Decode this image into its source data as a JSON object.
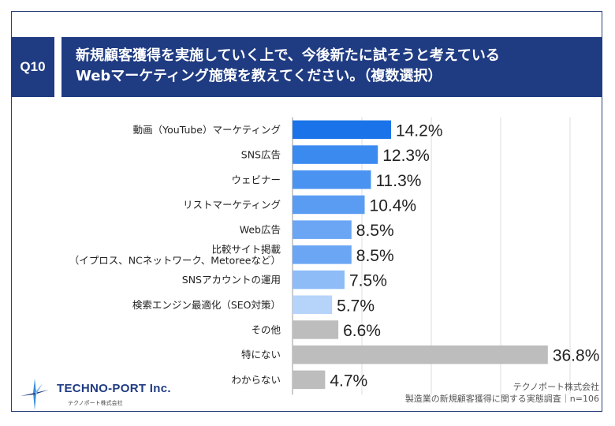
{
  "question": {
    "number": "Q10",
    "line1": "新規顧客獲得を実施していく上で、今後新たに試そうと考えている",
    "line2": "Webマーケティング施策を教えてください。（複数選択）"
  },
  "chart_data": {
    "type": "bar",
    "orientation": "horizontal",
    "unit": "%",
    "xlim": [
      0,
      50
    ],
    "grid": true,
    "categories": [
      [
        "動画（YouTube）マーケティング"
      ],
      [
        "SNS広告"
      ],
      [
        "ウェビナー"
      ],
      [
        "リストマーケティング"
      ],
      [
        "Web広告"
      ],
      [
        "比較サイト掲載",
        "（イプロス、NCネットワーク、Metoreeなど）"
      ],
      [
        "SNSアカウントの運用"
      ],
      [
        "検索エンジン最適化（SEO対策）"
      ],
      [
        "その他"
      ],
      [
        "特にない"
      ],
      [
        "わからない"
      ]
    ],
    "values": [
      14.2,
      12.3,
      11.3,
      10.4,
      8.5,
      8.5,
      7.5,
      5.7,
      6.6,
      36.8,
      4.7
    ],
    "value_labels": [
      "14.2%",
      "12.3%",
      "11.3%",
      "10.4%",
      "8.5%",
      "8.5%",
      "7.5%",
      "5.7%",
      "6.6%",
      "36.8%",
      "4.7%"
    ],
    "bar_colors": [
      "#1a73e8",
      "#3b8af0",
      "#4a93f1",
      "#5a9cf2",
      "#6aa6f4",
      "#6aa6f4",
      "#8dbcf7",
      "#b6d4fa",
      "#bdbdbd",
      "#bdbdbd",
      "#bdbdbd"
    ]
  },
  "logo": {
    "name": "TECHNO-PORT Inc.",
    "subtitle": "テクノポート株式会社"
  },
  "source": {
    "company": "テクノポート株式会社",
    "survey": "製造業の新規顧客獲得に関する実態調査｜n=106"
  }
}
